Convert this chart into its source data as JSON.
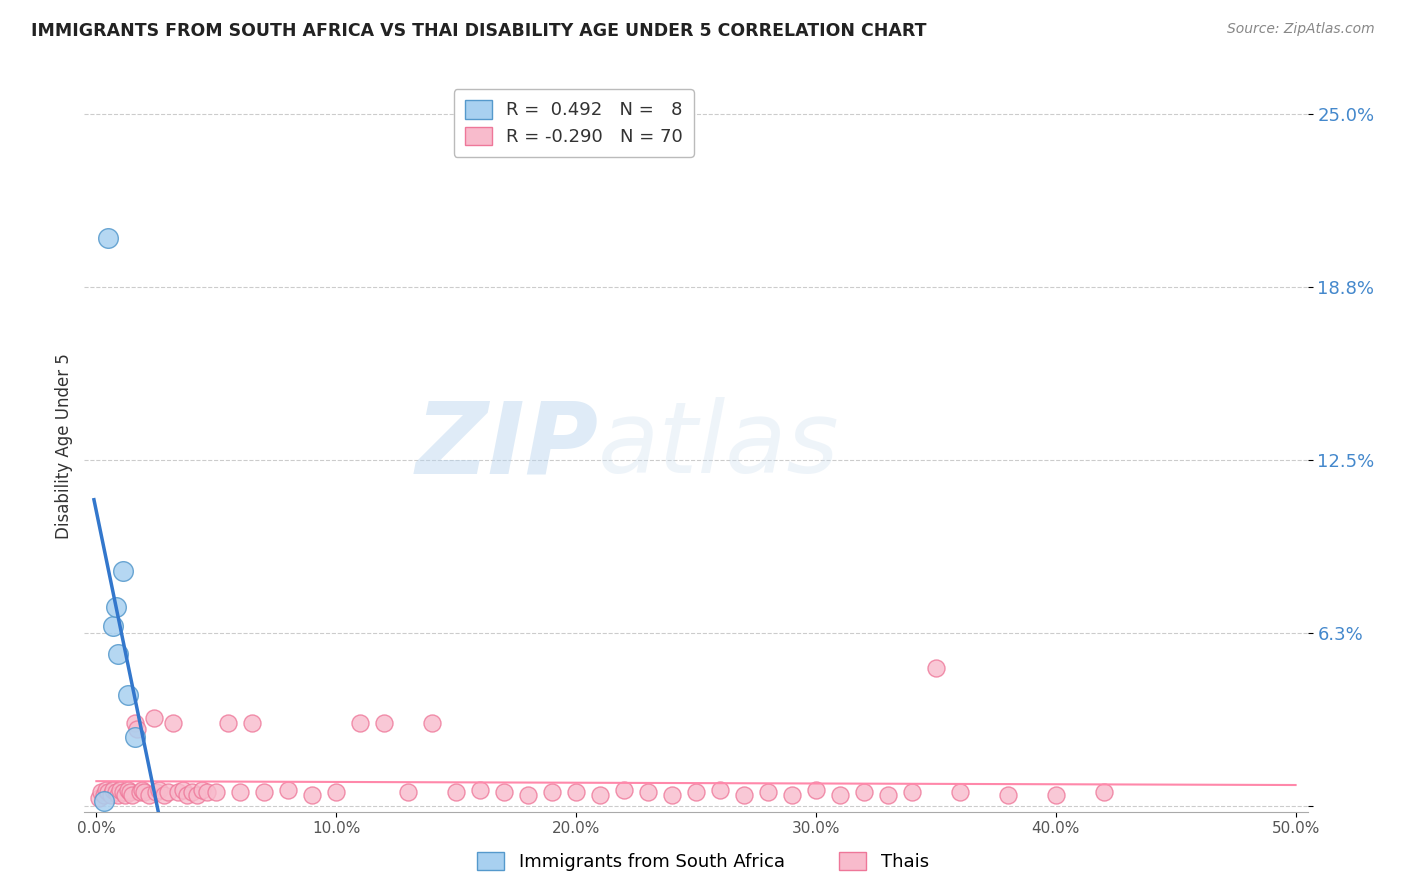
{
  "title": "IMMIGRANTS FROM SOUTH AFRICA VS THAI DISABILITY AGE UNDER 5 CORRELATION CHART",
  "source": "Source: ZipAtlas.com",
  "ylabel": "Disability Age Under 5",
  "xlim": [
    -0.005,
    0.505
  ],
  "ylim": [
    -0.002,
    0.262
  ],
  "xticks": [
    0.0,
    0.1,
    0.2,
    0.3,
    0.4,
    0.5
  ],
  "xticklabels": [
    "0.0%",
    "10.0%",
    "20.0%",
    "30.0%",
    "40.0%",
    "50.0%"
  ],
  "ytick_vals": [
    0.0,
    0.0625,
    0.125,
    0.1875,
    0.25
  ],
  "ytick_labels": [
    "",
    "6.3%",
    "12.5%",
    "18.8%",
    "25.0%"
  ],
  "grid_color": "#cccccc",
  "background_color": "#ffffff",
  "blue_color": "#A8D0F0",
  "blue_edge": "#5599CC",
  "pink_color": "#F8BBCC",
  "pink_edge": "#EE7799",
  "legend_blue_label": "R =  0.492   N =   8",
  "legend_pink_label": "R = -0.290   N = 70",
  "watermark_zip": "ZIP",
  "watermark_atlas": "atlas",
  "legend_label_blue": "Immigrants from South Africa",
  "legend_label_pink": "Thais",
  "blue_scatter_x": [
    0.003,
    0.005,
    0.007,
    0.008,
    0.009,
    0.011,
    0.013,
    0.016
  ],
  "blue_scatter_y": [
    0.002,
    0.205,
    0.065,
    0.072,
    0.055,
    0.085,
    0.04,
    0.025
  ],
  "pink_scatter_x": [
    0.001,
    0.002,
    0.003,
    0.004,
    0.005,
    0.006,
    0.007,
    0.008,
    0.009,
    0.01,
    0.011,
    0.012,
    0.013,
    0.014,
    0.015,
    0.016,
    0.017,
    0.018,
    0.019,
    0.02,
    0.022,
    0.024,
    0.025,
    0.026,
    0.028,
    0.03,
    0.032,
    0.034,
    0.036,
    0.038,
    0.04,
    0.042,
    0.044,
    0.046,
    0.05,
    0.055,
    0.06,
    0.065,
    0.07,
    0.08,
    0.09,
    0.1,
    0.11,
    0.12,
    0.13,
    0.14,
    0.15,
    0.16,
    0.17,
    0.18,
    0.19,
    0.2,
    0.21,
    0.22,
    0.23,
    0.24,
    0.25,
    0.26,
    0.27,
    0.28,
    0.29,
    0.3,
    0.31,
    0.32,
    0.33,
    0.34,
    0.36,
    0.38,
    0.4,
    0.42
  ],
  "pink_scatter_y": [
    0.003,
    0.005,
    0.004,
    0.006,
    0.005,
    0.004,
    0.006,
    0.005,
    0.004,
    0.006,
    0.005,
    0.004,
    0.006,
    0.005,
    0.004,
    0.03,
    0.028,
    0.005,
    0.006,
    0.005,
    0.004,
    0.032,
    0.005,
    0.006,
    0.004,
    0.005,
    0.03,
    0.005,
    0.006,
    0.004,
    0.005,
    0.004,
    0.006,
    0.005,
    0.005,
    0.03,
    0.005,
    0.03,
    0.005,
    0.006,
    0.004,
    0.005,
    0.03,
    0.03,
    0.005,
    0.03,
    0.005,
    0.006,
    0.005,
    0.004,
    0.005,
    0.005,
    0.004,
    0.006,
    0.005,
    0.004,
    0.005,
    0.006,
    0.004,
    0.005,
    0.004,
    0.006,
    0.004,
    0.005,
    0.004,
    0.005,
    0.005,
    0.004,
    0.004,
    0.005
  ],
  "pink_outlier_x": [
    0.35
  ],
  "pink_outlier_y": [
    0.05
  ],
  "blue_trend_color": "#3377CC",
  "blue_trend_dashed_color": "#88BBDD",
  "pink_trend_color": "#FF88AA"
}
